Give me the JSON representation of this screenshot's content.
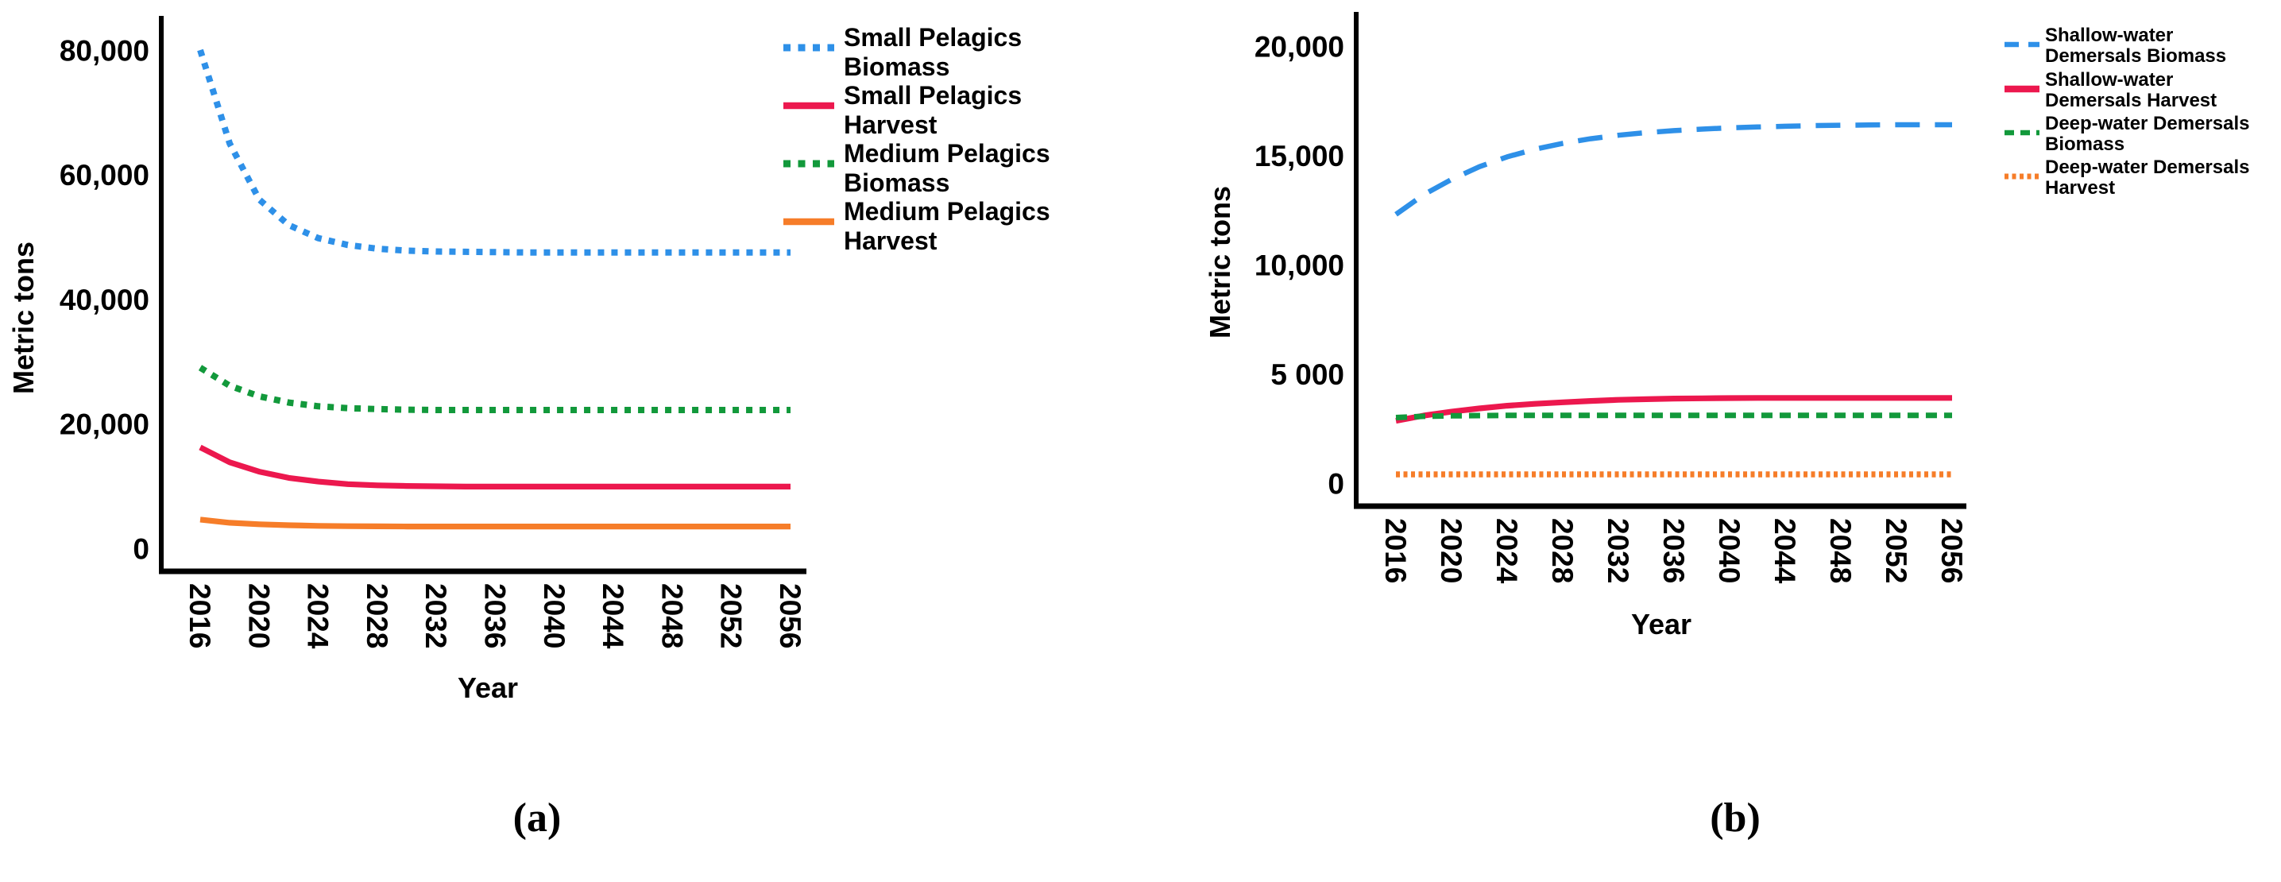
{
  "figure": {
    "background": "#ffffff"
  },
  "colors": {
    "blue": "#2E90E8",
    "red": "#EC184E",
    "green": "#12993B",
    "orange": "#F67D29",
    "axis": "#000000"
  },
  "chart_data": [
    {
      "type": "line",
      "caption": "(a)",
      "xlabel": "Year",
      "ylabel": "Metric tons",
      "ylim": [
        0,
        84000
      ],
      "grid": false,
      "legend_position": "right",
      "x": [
        2016,
        2018,
        2020,
        2022,
        2024,
        2026,
        2028,
        2030,
        2032,
        2034,
        2036,
        2038,
        2040,
        2042,
        2044,
        2046,
        2048,
        2050,
        2052,
        2054,
        2056
      ],
      "xticks": [
        "2016",
        "2020",
        "2024",
        "2028",
        "2032",
        "2036",
        "2040",
        "2044",
        "2048",
        "2052",
        "2056"
      ],
      "yticks": [
        {
          "label": "0",
          "value": 0
        },
        {
          "label": "20,000",
          "value": 20000
        },
        {
          "label": "40,000",
          "value": 40000
        },
        {
          "label": "60,000",
          "value": 60000
        },
        {
          "label": "80,000",
          "value": 80000
        }
      ],
      "series": [
        {
          "name": "Small Pelagics Biomass",
          "legend_lines": [
            "Small Pelagics",
            "Biomass"
          ],
          "color": "blue",
          "style": "dotted",
          "values": [
            80000,
            65000,
            56000,
            51900,
            49800,
            48700,
            48100,
            47800,
            47650,
            47600,
            47550,
            47500,
            47500,
            47500,
            47500,
            47500,
            47500,
            47500,
            47500,
            47500,
            47500
          ]
        },
        {
          "name": "Small Pelagics Harvest",
          "legend_lines": [
            "Small Pelagics",
            "Harvest"
          ],
          "color": "red",
          "style": "solid",
          "values": [
            16200,
            13800,
            12300,
            11300,
            10700,
            10300,
            10100,
            10000,
            9950,
            9900,
            9900,
            9900,
            9900,
            9900,
            9900,
            9900,
            9900,
            9900,
            9900,
            9900,
            9900
          ]
        },
        {
          "name": "Medium Pelagics Biomass",
          "legend_lines": [
            "Medium Pelagics",
            "Biomass"
          ],
          "color": "green",
          "style": "dotted",
          "values": [
            29000,
            26100,
            24400,
            23400,
            22800,
            22500,
            22350,
            22250,
            22200,
            22200,
            22200,
            22200,
            22200,
            22200,
            22200,
            22200,
            22200,
            22200,
            22200,
            22200,
            22200
          ]
        },
        {
          "name": "Medium Pelagics Harvest",
          "legend_lines": [
            "Medium Pelagics",
            "Harvest"
          ],
          "color": "orange",
          "style": "solid",
          "values": [
            4600,
            4100,
            3850,
            3700,
            3600,
            3550,
            3520,
            3500,
            3500,
            3500,
            3500,
            3500,
            3500,
            3500,
            3500,
            3500,
            3500,
            3500,
            3500,
            3500,
            3500
          ]
        }
      ]
    },
    {
      "type": "line",
      "caption": "(b)",
      "xlabel": "Year",
      "ylabel": "Metric tons",
      "ylim": [
        0,
        21500
      ],
      "grid": false,
      "legend_position": "right",
      "x": [
        2016,
        2018,
        2020,
        2022,
        2024,
        2026,
        2028,
        2030,
        2032,
        2034,
        2036,
        2038,
        2040,
        2042,
        2044,
        2046,
        2048,
        2050,
        2052,
        2054,
        2056
      ],
      "xticks": [
        "2016",
        "2020",
        "2024",
        "2028",
        "2032",
        "2036",
        "2040",
        "2044",
        "2048",
        "2052",
        "2056"
      ],
      "yticks": [
        {
          "label": "0",
          "value": 0
        },
        {
          "label": "5 000",
          "value": 5000
        },
        {
          "label": "10,000",
          "value": 10000
        },
        {
          "label": "15,000",
          "value": 15000
        },
        {
          "label": "20,000",
          "value": 20000
        }
      ],
      "series": [
        {
          "name": "Shallow-water Demersals Biomass",
          "legend_lines": [
            "Shallow-water",
            "Demersals Biomass"
          ],
          "color": "blue",
          "style": "dashed",
          "values": [
            12300,
            13200,
            13900,
            14480,
            14930,
            15280,
            15550,
            15760,
            15920,
            16040,
            16130,
            16200,
            16260,
            16300,
            16330,
            16360,
            16380,
            16390,
            16400,
            16400,
            16400
          ]
        },
        {
          "name": "Shallow-water Demersals Harvest",
          "legend_lines": [
            "Shallow-water",
            "Demersals Harvest"
          ],
          "color": "red",
          "style": "solid",
          "values": [
            2850,
            3090,
            3270,
            3420,
            3540,
            3630,
            3700,
            3760,
            3810,
            3840,
            3870,
            3880,
            3890,
            3900,
            3900,
            3900,
            3900,
            3900,
            3900,
            3900,
            3900
          ]
        },
        {
          "name": "Deep-water Demersals Biomass",
          "legend_lines": [
            "Deep-water Demersals",
            "Biomass"
          ],
          "color": "green",
          "style": "dashed-short",
          "values": [
            3000,
            3060,
            3080,
            3090,
            3100,
            3100,
            3100,
            3100,
            3100,
            3100,
            3100,
            3100,
            3100,
            3100,
            3100,
            3100,
            3100,
            3100,
            3100,
            3100,
            3100
          ]
        },
        {
          "name": "Deep-water Demersals Harvest",
          "legend_lines": [
            "Deep-water Demersals",
            "Harvest"
          ],
          "color": "orange",
          "style": "dotted-fine",
          "values": [
            400,
            400,
            400,
            400,
            400,
            400,
            400,
            400,
            400,
            400,
            400,
            400,
            400,
            400,
            400,
            400,
            400,
            400,
            400,
            400,
            400
          ]
        }
      ]
    }
  ]
}
